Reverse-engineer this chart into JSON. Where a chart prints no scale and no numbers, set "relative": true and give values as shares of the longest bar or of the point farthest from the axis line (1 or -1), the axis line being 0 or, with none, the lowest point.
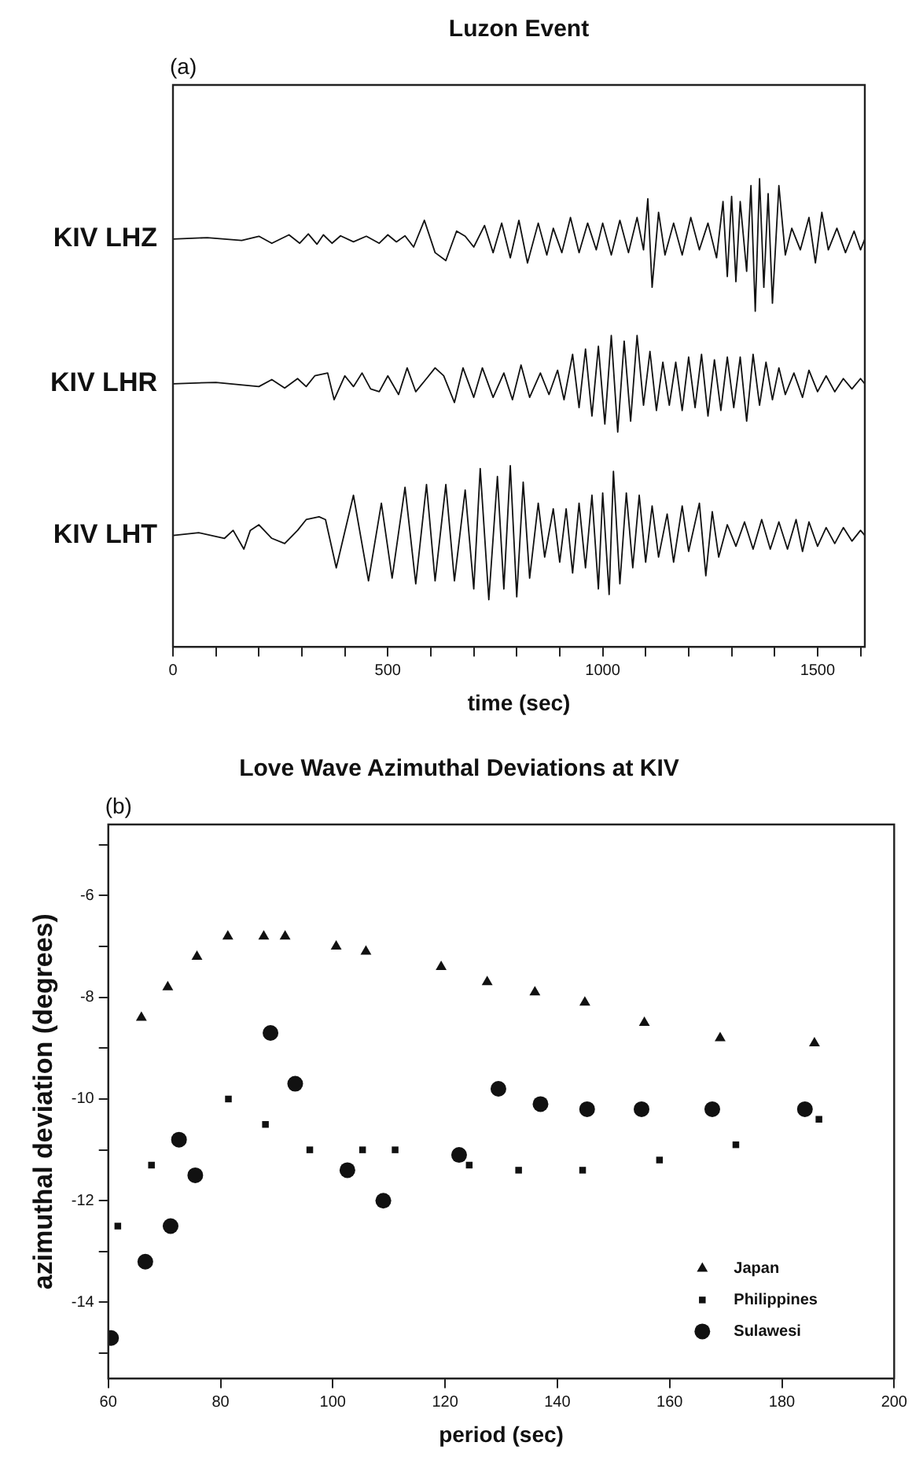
{
  "chart_data": [
    {
      "type": "line",
      "title": "Luzon Event",
      "annotations": [
        "(a)"
      ],
      "xlabel": "time (sec)",
      "relative": true,
      "legend": false,
      "grid": false,
      "marker": "none",
      "line_style": "solid",
      "tick_labels": "x",
      "xlim": [
        0,
        1610
      ],
      "xticks": [
        0,
        {
          "value": 100,
          "label": null
        },
        {
          "value": 200,
          "label": null
        },
        {
          "value": 300,
          "label": null
        },
        {
          "value": 400,
          "label": null
        },
        500,
        {
          "value": 600,
          "label": null
        },
        {
          "value": 700,
          "label": null
        },
        {
          "value": 800,
          "label": null
        },
        {
          "value": 900,
          "label": null
        },
        1000,
        {
          "value": 1100,
          "label": null
        },
        {
          "value": 1200,
          "label": null
        },
        {
          "value": 1300,
          "label": null
        },
        {
          "value": 1400,
          "label": null
        },
        1500,
        {
          "value": 1600,
          "label": null
        }
      ],
      "series": [
        {
          "name": "KIV LHZ",
          "color": "#111111",
          "x": [
            0,
            80,
            160,
            200,
            230,
            270,
            295,
            315,
            335,
            350,
            370,
            390,
            420,
            450,
            480,
            500,
            520,
            540,
            560,
            585,
            610,
            635,
            660,
            680,
            700,
            725,
            745,
            765,
            785,
            805,
            825,
            850,
            870,
            885,
            905,
            925,
            945,
            965,
            985,
            1000,
            1020,
            1040,
            1060,
            1080,
            1095,
            1105,
            1115,
            1130,
            1145,
            1165,
            1185,
            1205,
            1225,
            1245,
            1265,
            1280,
            1290,
            1300,
            1310,
            1320,
            1335,
            1345,
            1355,
            1365,
            1375,
            1385,
            1395,
            1410,
            1425,
            1440,
            1460,
            1480,
            1495,
            1510,
            1525,
            1545,
            1565,
            1585,
            1600,
            1610
          ],
          "values": [
            0.871,
            0.874,
            0.868,
            0.877,
            0.862,
            0.88,
            0.862,
            0.882,
            0.86,
            0.88,
            0.862,
            0.878,
            0.865,
            0.877,
            0.862,
            0.88,
            0.865,
            0.878,
            0.854,
            0.911,
            0.842,
            0.825,
            0.888,
            0.877,
            0.854,
            0.9,
            0.842,
            0.905,
            0.831,
            0.911,
            0.82,
            0.905,
            0.837,
            0.894,
            0.842,
            0.917,
            0.842,
            0.905,
            0.848,
            0.905,
            0.837,
            0.911,
            0.842,
            0.917,
            0.848,
            0.957,
            0.768,
            0.928,
            0.837,
            0.905,
            0.837,
            0.917,
            0.848,
            0.905,
            0.831,
            0.951,
            0.791,
            0.962,
            0.78,
            0.951,
            0.802,
            0.985,
            0.717,
            1,
            0.768,
            0.968,
            0.734,
            0.985,
            0.837,
            0.894,
            0.848,
            0.917,
            0.82,
            0.928,
            0.848,
            0.894,
            0.842,
            0.888,
            0.848,
            0.871
          ]
        },
        {
          "name": "KIV LHR",
          "color": "#111111",
          "x": [
            0,
            100,
            200,
            230,
            260,
            290,
            310,
            330,
            360,
            375,
            400,
            420,
            440,
            460,
            480,
            500,
            525,
            545,
            565,
            590,
            610,
            630,
            655,
            675,
            700,
            720,
            745,
            770,
            790,
            810,
            830,
            855,
            875,
            895,
            910,
            930,
            945,
            960,
            975,
            990,
            1005,
            1020,
            1035,
            1050,
            1065,
            1080,
            1095,
            1110,
            1125,
            1140,
            1155,
            1170,
            1185,
            1200,
            1215,
            1230,
            1245,
            1260,
            1275,
            1290,
            1305,
            1320,
            1335,
            1350,
            1365,
            1380,
            1395,
            1410,
            1425,
            1445,
            1465,
            1480,
            1500,
            1520,
            1540,
            1560,
            1580,
            1600,
            1610
          ],
          "values": [
            0.562,
            0.565,
            0.556,
            0.571,
            0.553,
            0.573,
            0.556,
            0.579,
            0.585,
            0.528,
            0.579,
            0.556,
            0.585,
            0.551,
            0.545,
            0.579,
            0.539,
            0.596,
            0.545,
            0.573,
            0.596,
            0.579,
            0.522,
            0.596,
            0.533,
            0.596,
            0.533,
            0.585,
            0.528,
            0.602,
            0.533,
            0.585,
            0.539,
            0.591,
            0.528,
            0.625,
            0.511,
            0.636,
            0.493,
            0.642,
            0.476,
            0.665,
            0.459,
            0.653,
            0.482,
            0.665,
            0.516,
            0.631,
            0.505,
            0.608,
            0.516,
            0.608,
            0.505,
            0.619,
            0.511,
            0.625,
            0.493,
            0.613,
            0.505,
            0.619,
            0.511,
            0.619,
            0.482,
            0.625,
            0.516,
            0.608,
            0.528,
            0.596,
            0.539,
            0.585,
            0.533,
            0.591,
            0.545,
            0.579,
            0.545,
            0.573,
            0.551,
            0.573,
            0.562
          ]
        },
        {
          "name": "KIV LHT",
          "color": "#111111",
          "x": [
            0,
            60,
            120,
            140,
            165,
            180,
            200,
            230,
            260,
            290,
            310,
            340,
            355,
            380,
            420,
            455,
            485,
            510,
            540,
            565,
            590,
            610,
            635,
            655,
            680,
            700,
            715,
            735,
            755,
            770,
            785,
            800,
            815,
            830,
            850,
            865,
            885,
            900,
            915,
            930,
            945,
            960,
            975,
            990,
            1000,
            1015,
            1025,
            1040,
            1055,
            1070,
            1085,
            1100,
            1115,
            1130,
            1150,
            1165,
            1185,
            1200,
            1225,
            1240,
            1255,
            1270,
            1290,
            1310,
            1330,
            1350,
            1370,
            1390,
            1410,
            1430,
            1450,
            1465,
            1480,
            1500,
            1520,
            1540,
            1560,
            1580,
            1600,
            1610
          ],
          "values": [
            0.238,
            0.244,
            0.232,
            0.249,
            0.209,
            0.249,
            0.261,
            0.232,
            0.221,
            0.249,
            0.272,
            0.278,
            0.272,
            0.169,
            0.324,
            0.141,
            0.307,
            0.147,
            0.341,
            0.135,
            0.347,
            0.141,
            0.347,
            0.141,
            0.335,
            0.124,
            0.381,
            0.101,
            0.364,
            0.124,
            0.387,
            0.107,
            0.352,
            0.147,
            0.307,
            0.192,
            0.295,
            0.181,
            0.295,
            0.158,
            0.307,
            0.169,
            0.324,
            0.124,
            0.329,
            0.112,
            0.375,
            0.135,
            0.329,
            0.169,
            0.324,
            0.181,
            0.301,
            0.192,
            0.284,
            0.181,
            0.301,
            0.204,
            0.307,
            0.152,
            0.289,
            0.192,
            0.261,
            0.215,
            0.267,
            0.209,
            0.272,
            0.209,
            0.267,
            0.209,
            0.272,
            0.204,
            0.267,
            0.215,
            0.255,
            0.221,
            0.255,
            0.226,
            0.249,
            0.238
          ]
        }
      ]
    },
    {
      "type": "scatter",
      "title": "Love Wave Azimuthal Deviations at KIV",
      "annotations": [
        "(b)"
      ],
      "xlabel": "period (sec)",
      "ylabel": "azimuthal deviation (degrees)",
      "legend": "bottom right",
      "grid": false,
      "xlim": [
        60,
        200
      ],
      "xticks": [
        60,
        80,
        100,
        120,
        140,
        160,
        180,
        200
      ],
      "ylim": [
        -15.5,
        -4.6
      ],
      "yticks": [
        {
          "value": -5,
          "label": null
        },
        -6,
        {
          "value": -7,
          "label": null
        },
        -8,
        {
          "value": -9,
          "label": null
        },
        -10,
        {
          "value": -11,
          "label": null
        },
        -12,
        {
          "value": -13,
          "label": null
        },
        -14,
        {
          "value": -15,
          "label": null
        }
      ],
      "series": [
        {
          "name": "Japan",
          "color": "#111111",
          "marker": "triangle",
          "x": [
            65.9,
            70.6,
            75.8,
            81.3,
            87.7,
            91.5,
            100.6,
            105.9,
            119.3,
            127.5,
            136.0,
            144.9,
            155.5,
            169.0,
            185.8
          ],
          "values": [
            -8.4,
            -7.8,
            -7.2,
            -6.8,
            -6.8,
            -6.8,
            -7.0,
            -7.1,
            -7.4,
            -7.7,
            -7.9,
            -8.1,
            -8.5,
            -8.8,
            -8.9
          ]
        },
        {
          "name": "Philippines",
          "color": "#111111",
          "marker": "square",
          "x": [
            61.7,
            67.7,
            81.4,
            88.0,
            95.9,
            105.3,
            111.1,
            124.3,
            133.1,
            144.5,
            158.2,
            171.8,
            186.6
          ],
          "values": [
            -12.5,
            -11.3,
            -10.0,
            -10.5,
            -11.0,
            -11.0,
            -11.0,
            -11.3,
            -11.4,
            -11.4,
            -11.2,
            -10.9,
            -10.4
          ]
        },
        {
          "name": "Sulawesi",
          "color": "#111111",
          "marker": "circle",
          "x": [
            60.5,
            66.6,
            71.1,
            72.6,
            75.5,
            88.9,
            93.3,
            102.6,
            109.0,
            122.5,
            129.5,
            137.0,
            145.3,
            155.0,
            167.6,
            184.1
          ],
          "values": [
            -14.7,
            -13.2,
            -12.5,
            -10.8,
            -11.5,
            -8.7,
            -9.7,
            -11.4,
            -12.0,
            -11.1,
            -9.8,
            -10.1,
            -10.2,
            -10.2,
            -10.2,
            -10.2
          ]
        }
      ]
    }
  ]
}
